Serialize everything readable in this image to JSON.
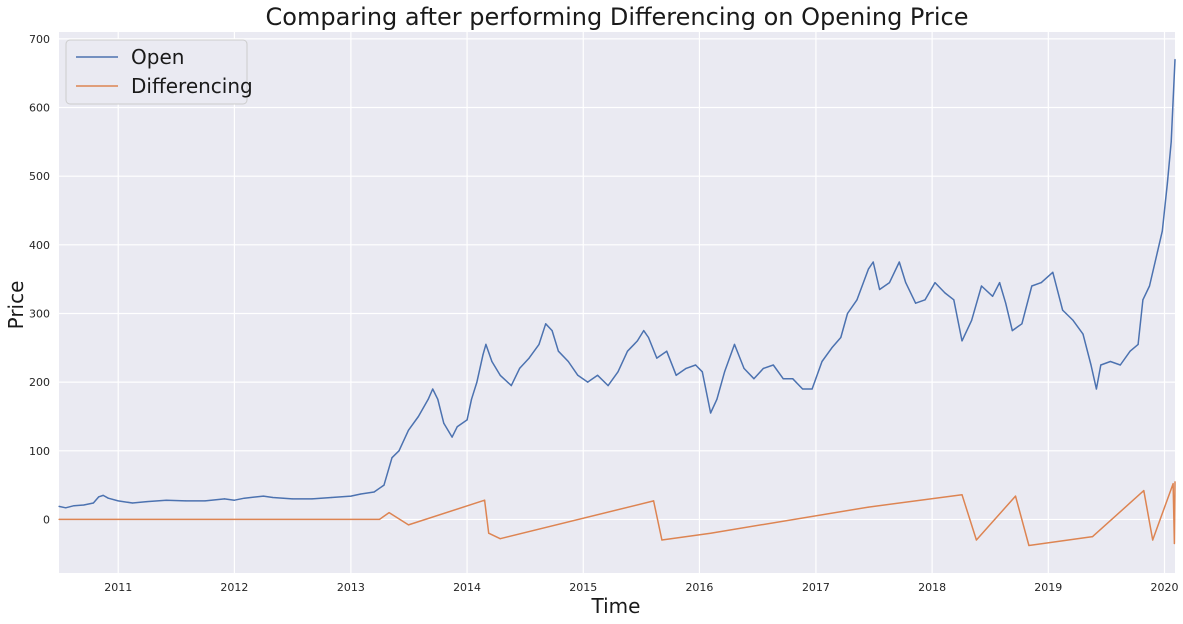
{
  "chart_data": {
    "type": "line",
    "title": "Comparing after performing Differencing on Opening Price",
    "xlabel": "Time",
    "ylabel": "Price",
    "x_tick_labels": [
      "2011",
      "2012",
      "2013",
      "2014",
      "2015",
      "2016",
      "2017",
      "2018",
      "2019",
      "2020"
    ],
    "y_tick_labels": [
      "0",
      "100",
      "200",
      "300",
      "400",
      "500",
      "600",
      "700"
    ],
    "xlim": [
      "2010-06-29",
      "2020-02-03"
    ],
    "ylim": [
      -78,
      710
    ],
    "grid": true,
    "legend_position": "top-left",
    "series": [
      {
        "name": "Open",
        "color": "#4C72B0",
        "points": [
          [
            "2010-06-29",
            19
          ],
          [
            "2010-07-20",
            17
          ],
          [
            "2010-08-15",
            20
          ],
          [
            "2010-09-15",
            21
          ],
          [
            "2010-10-15",
            24
          ],
          [
            "2010-11-01",
            33
          ],
          [
            "2010-11-15",
            35
          ],
          [
            "2010-12-01",
            31
          ],
          [
            "2011-01-01",
            27
          ],
          [
            "2011-02-15",
            24
          ],
          [
            "2011-04-01",
            26
          ],
          [
            "2011-06-01",
            28
          ],
          [
            "2011-08-01",
            27
          ],
          [
            "2011-10-01",
            27
          ],
          [
            "2011-12-01",
            30
          ],
          [
            "2012-01-01",
            28
          ],
          [
            "2012-02-01",
            31
          ],
          [
            "2012-04-01",
            34
          ],
          [
            "2012-05-01",
            32
          ],
          [
            "2012-07-01",
            30
          ],
          [
            "2012-09-01",
            30
          ],
          [
            "2012-11-01",
            32
          ],
          [
            "2013-01-01",
            34
          ],
          [
            "2013-02-01",
            37
          ],
          [
            "2013-03-15",
            40
          ],
          [
            "2013-04-15",
            50
          ],
          [
            "2013-05-10",
            90
          ],
          [
            "2013-06-01",
            100
          ],
          [
            "2013-07-01",
            130
          ],
          [
            "2013-08-01",
            150
          ],
          [
            "2013-09-01",
            175
          ],
          [
            "2013-09-15",
            190
          ],
          [
            "2013-10-01",
            175
          ],
          [
            "2013-10-20",
            140
          ],
          [
            "2013-11-15",
            120
          ],
          [
            "2013-12-01",
            135
          ],
          [
            "2014-01-01",
            145
          ],
          [
            "2014-01-15",
            175
          ],
          [
            "2014-02-01",
            200
          ],
          [
            "2014-02-20",
            240
          ],
          [
            "2014-03-01",
            255
          ],
          [
            "2014-03-20",
            230
          ],
          [
            "2014-04-15",
            210
          ],
          [
            "2014-05-20",
            195
          ],
          [
            "2014-06-15",
            220
          ],
          [
            "2014-07-15",
            235
          ],
          [
            "2014-08-15",
            255
          ],
          [
            "2014-09-05",
            285
          ],
          [
            "2014-09-25",
            275
          ],
          [
            "2014-10-15",
            245
          ],
          [
            "2014-11-15",
            230
          ],
          [
            "2014-12-15",
            210
          ],
          [
            "2015-01-15",
            200
          ],
          [
            "2015-02-15",
            210
          ],
          [
            "2015-03-20",
            195
          ],
          [
            "2015-04-20",
            215
          ],
          [
            "2015-05-20",
            245
          ],
          [
            "2015-06-20",
            260
          ],
          [
            "2015-07-10",
            275
          ],
          [
            "2015-07-25",
            265
          ],
          [
            "2015-08-20",
            235
          ],
          [
            "2015-09-20",
            245
          ],
          [
            "2015-10-20",
            210
          ],
          [
            "2015-11-20",
            220
          ],
          [
            "2015-12-20",
            225
          ],
          [
            "2016-01-10",
            215
          ],
          [
            "2016-02-05",
            155
          ],
          [
            "2016-02-25",
            175
          ],
          [
            "2016-03-20",
            215
          ],
          [
            "2016-04-20",
            255
          ],
          [
            "2016-05-20",
            220
          ],
          [
            "2016-06-20",
            205
          ],
          [
            "2016-07-20",
            220
          ],
          [
            "2016-08-20",
            225
          ],
          [
            "2016-09-20",
            205
          ],
          [
            "2016-10-20",
            205
          ],
          [
            "2016-11-20",
            190
          ],
          [
            "2016-12-20",
            190
          ],
          [
            "2017-01-20",
            230
          ],
          [
            "2017-02-20",
            250
          ],
          [
            "2017-03-20",
            265
          ],
          [
            "2017-04-10",
            300
          ],
          [
            "2017-05-10",
            320
          ],
          [
            "2017-06-15",
            365
          ],
          [
            "2017-06-30",
            375
          ],
          [
            "2017-07-20",
            335
          ],
          [
            "2017-08-20",
            345
          ],
          [
            "2017-09-20",
            375
          ],
          [
            "2017-10-10",
            345
          ],
          [
            "2017-11-10",
            315
          ],
          [
            "2017-12-10",
            320
          ],
          [
            "2018-01-10",
            345
          ],
          [
            "2018-02-10",
            330
          ],
          [
            "2018-03-10",
            320
          ],
          [
            "2018-04-05",
            260
          ],
          [
            "2018-05-05",
            290
          ],
          [
            "2018-06-05",
            340
          ],
          [
            "2018-07-10",
            325
          ],
          [
            "2018-08-01",
            345
          ],
          [
            "2018-08-20",
            315
          ],
          [
            "2018-09-10",
            275
          ],
          [
            "2018-10-10",
            285
          ],
          [
            "2018-11-10",
            340
          ],
          [
            "2018-12-10",
            345
          ],
          [
            "2019-01-15",
            360
          ],
          [
            "2019-02-15",
            305
          ],
          [
            "2019-03-20",
            290
          ],
          [
            "2019-04-20",
            270
          ],
          [
            "2019-05-15",
            225
          ],
          [
            "2019-06-01",
            190
          ],
          [
            "2019-06-15",
            225
          ],
          [
            "2019-07-15",
            230
          ],
          [
            "2019-08-15",
            225
          ],
          [
            "2019-09-15",
            245
          ],
          [
            "2019-10-10",
            255
          ],
          [
            "2019-10-25",
            320
          ],
          [
            "2019-11-15",
            340
          ],
          [
            "2019-12-10",
            390
          ],
          [
            "2019-12-25",
            420
          ],
          [
            "2020-01-10",
            490
          ],
          [
            "2020-01-22",
            550
          ],
          [
            "2020-02-03",
            670
          ]
        ]
      },
      {
        "name": "Differencing",
        "color": "#DD8452",
        "points": [
          [
            "2010-06-29",
            0
          ],
          [
            "2013-04-01",
            0
          ],
          [
            "2013-05-01",
            10
          ],
          [
            "2013-07-01",
            -8
          ],
          [
            "2014-02-25",
            28
          ],
          [
            "2014-03-10",
            -20
          ],
          [
            "2014-04-15",
            -28
          ],
          [
            "2015-08-10",
            27
          ],
          [
            "2015-09-05",
            -30
          ],
          [
            "2016-02-05",
            -20
          ],
          [
            "2017-06-15",
            18
          ],
          [
            "2018-04-05",
            36
          ],
          [
            "2018-05-20",
            -30
          ],
          [
            "2018-09-20",
            34
          ],
          [
            "2018-11-01",
            -38
          ],
          [
            "2019-05-20",
            -25
          ],
          [
            "2019-10-28",
            42
          ],
          [
            "2019-11-25",
            -30
          ],
          [
            "2020-01-28",
            52
          ],
          [
            "2020-02-01",
            -35
          ],
          [
            "2020-02-03",
            55
          ]
        ]
      }
    ]
  }
}
